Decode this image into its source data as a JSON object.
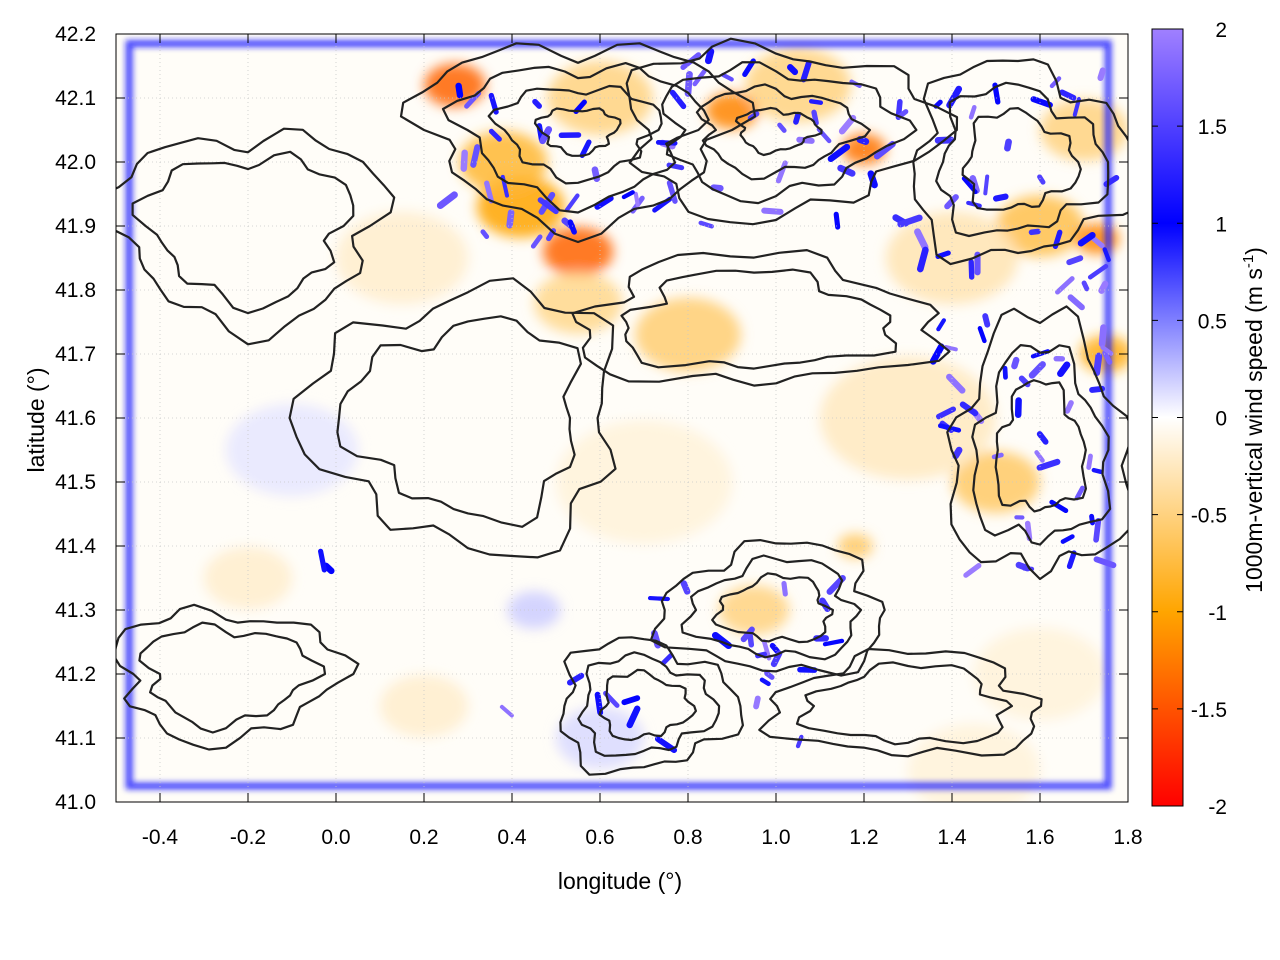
{
  "chart_data": {
    "type": "heatmap",
    "xlabel": "longitude (°)",
    "ylabel": "latitude (°)",
    "colorbar_label": "1000m-vertical wind speed (m s",
    "colorbar_label_sup": "-1",
    "colorbar_label_end": ")",
    "xlim": [
      -0.5,
      1.8
    ],
    "ylim": [
      41.0,
      42.2
    ],
    "xticks": [
      {
        "value": -0.4,
        "label": "-0.4"
      },
      {
        "value": -0.2,
        "label": "-0.2"
      },
      {
        "value": 0.0,
        "label": "0.0"
      },
      {
        "value": 0.2,
        "label": "0.2"
      },
      {
        "value": 0.4,
        "label": "0.4"
      },
      {
        "value": 0.6,
        "label": "0.6"
      },
      {
        "value": 0.8,
        "label": "0.8"
      },
      {
        "value": 1.0,
        "label": "1.0"
      },
      {
        "value": 1.2,
        "label": "1.2"
      },
      {
        "value": 1.4,
        "label": "1.4"
      },
      {
        "value": 1.6,
        "label": "1.6"
      },
      {
        "value": 1.8,
        "label": "1.8"
      }
    ],
    "yticks": [
      {
        "value": 41.0,
        "label": "41.0"
      },
      {
        "value": 41.1,
        "label": "41.1"
      },
      {
        "value": 41.2,
        "label": "41.2"
      },
      {
        "value": 41.3,
        "label": "41.3"
      },
      {
        "value": 41.4,
        "label": "41.4"
      },
      {
        "value": 41.5,
        "label": "41.5"
      },
      {
        "value": 41.6,
        "label": "41.6"
      },
      {
        "value": 41.7,
        "label": "41.7"
      },
      {
        "value": 41.8,
        "label": "41.8"
      },
      {
        "value": 41.9,
        "label": "41.9"
      },
      {
        "value": 42.0,
        "label": "42.0"
      },
      {
        "value": 42.1,
        "label": "42.1"
      },
      {
        "value": 42.2,
        "label": "42.2"
      }
    ],
    "colorbar": {
      "range": [
        -2,
        2
      ],
      "ticks": [
        {
          "value": 2,
          "label": "2"
        },
        {
          "value": 1.5,
          "label": "1.5"
        },
        {
          "value": 1,
          "label": "1"
        },
        {
          "value": 0.5,
          "label": "0.5"
        },
        {
          "value": 0,
          "label": "0"
        },
        {
          "value": -0.5,
          "label": "-0.5"
        },
        {
          "value": -1,
          "label": "-1"
        },
        {
          "value": -1.5,
          "label": "-1.5"
        },
        {
          "value": -2,
          "label": "-2"
        }
      ],
      "stops": [
        {
          "value": -2,
          "color": "#ff0000"
        },
        {
          "value": -1,
          "color": "#ffa500"
        },
        {
          "value": 0,
          "color": "#ffffff"
        },
        {
          "value": 1,
          "color": "#0000ff"
        },
        {
          "value": 2,
          "color": "#a080ff"
        }
      ]
    },
    "grid": true,
    "contour_color": "#222222",
    "features": {
      "downdraft_zones": [
        {
          "lon": 0.27,
          "lat": 42.12,
          "w": -1.4,
          "r": 0.07
        },
        {
          "lon": 0.42,
          "lat": 41.93,
          "w": -1.0,
          "r": 0.1
        },
        {
          "lon": 0.55,
          "lat": 41.86,
          "w": -1.4,
          "r": 0.08
        },
        {
          "lon": 0.38,
          "lat": 42.0,
          "w": -0.8,
          "r": 0.1
        },
        {
          "lon": 0.9,
          "lat": 42.08,
          "w": -1.2,
          "r": 0.06
        },
        {
          "lon": 1.2,
          "lat": 42.02,
          "w": -1.3,
          "r": 0.05
        },
        {
          "lon": 0.6,
          "lat": 42.1,
          "w": -0.5,
          "r": 0.12
        },
        {
          "lon": 1.05,
          "lat": 42.12,
          "w": -0.5,
          "r": 0.12
        },
        {
          "lon": 0.8,
          "lat": 41.73,
          "w": -0.55,
          "r": 0.12
        },
        {
          "lon": 0.55,
          "lat": 41.78,
          "w": -0.45,
          "r": 0.1
        },
        {
          "lon": 1.6,
          "lat": 41.9,
          "w": -0.7,
          "r": 0.1
        },
        {
          "lon": 1.73,
          "lat": 41.88,
          "w": -1.2,
          "r": 0.05
        },
        {
          "lon": 1.7,
          "lat": 42.05,
          "w": -0.5,
          "r": 0.1
        },
        {
          "lon": 1.5,
          "lat": 41.5,
          "w": -0.6,
          "r": 0.1
        },
        {
          "lon": 1.75,
          "lat": 41.7,
          "w": -0.9,
          "r": 0.06
        },
        {
          "lon": 1.18,
          "lat": 41.4,
          "w": -0.6,
          "r": 0.04
        },
        {
          "lon": 0.95,
          "lat": 41.3,
          "w": -0.5,
          "r": 0.08
        },
        {
          "lon": 1.3,
          "lat": 41.6,
          "w": -0.25,
          "r": 0.2
        },
        {
          "lon": 1.4,
          "lat": 41.85,
          "w": -0.3,
          "r": 0.15
        },
        {
          "lon": 0.15,
          "lat": 41.85,
          "w": -0.2,
          "r": 0.15
        },
        {
          "lon": 0.7,
          "lat": 41.5,
          "w": -0.15,
          "r": 0.2
        },
        {
          "lon": -0.2,
          "lat": 41.35,
          "w": -0.2,
          "r": 0.1
        },
        {
          "lon": 1.6,
          "lat": 41.2,
          "w": -0.15,
          "r": 0.15
        },
        {
          "lon": 0.2,
          "lat": 41.15,
          "w": -0.2,
          "r": 0.1
        },
        {
          "lon": 1.45,
          "lat": 41.05,
          "w": -0.15,
          "r": 0.15
        }
      ],
      "updraft_zones": [
        {
          "lon": -0.1,
          "lat": 41.55,
          "w": 0.1,
          "r": 0.15
        },
        {
          "lon": 0.6,
          "lat": 41.1,
          "w": 0.15,
          "r": 0.1
        },
        {
          "lon": 0.45,
          "lat": 41.3,
          "w": 0.2,
          "r": 0.06
        }
      ],
      "updraft_cells_regions": [
        {
          "lon": [
            0.25,
            0.6
          ],
          "lat": [
            41.85,
            42.13
          ],
          "count": 25
        },
        {
          "lon": [
            0.6,
            1.3
          ],
          "lat": [
            41.9,
            42.17
          ],
          "count": 40
        },
        {
          "lon": [
            1.3,
            1.78
          ],
          "lat": [
            41.8,
            42.15
          ],
          "count": 35
        },
        {
          "lon": [
            1.35,
            1.78
          ],
          "lat": [
            41.35,
            41.8
          ],
          "count": 45
        },
        {
          "lon": [
            0.7,
            1.15
          ],
          "lat": [
            41.08,
            41.35
          ],
          "count": 22
        },
        {
          "lon": [
            0.35,
            0.7
          ],
          "lat": [
            41.05,
            41.3
          ],
          "count": 6
        },
        {
          "lon": [
            -0.05,
            0.0
          ],
          "lat": [
            41.36,
            41.38
          ],
          "count": 2
        }
      ]
    }
  }
}
